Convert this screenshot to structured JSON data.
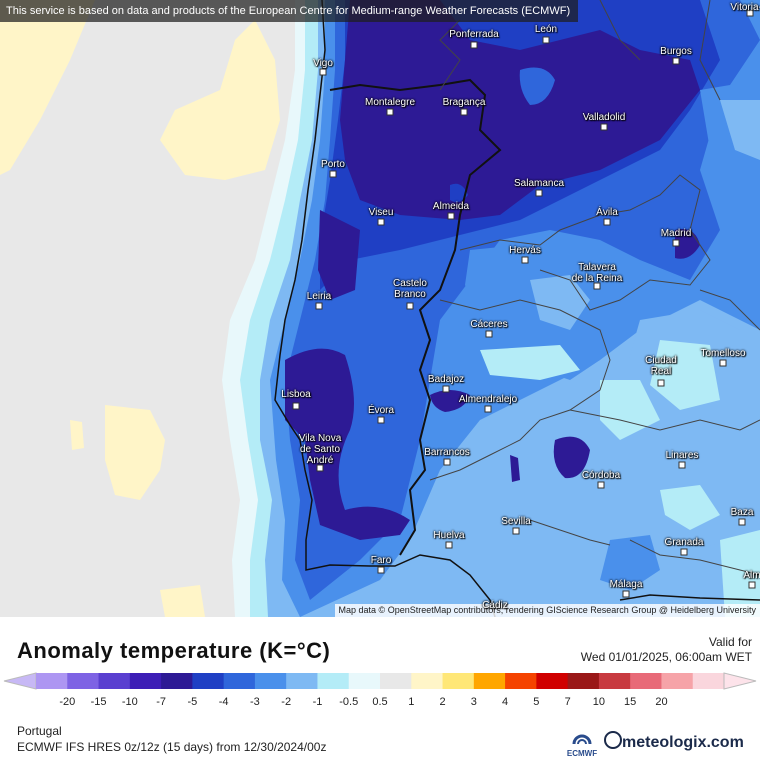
{
  "attribution_top": "This service is based on data and products of the European Centre for Medium-range Weather Forecasts (ECMWF)",
  "attribution_bottom": "Map data © OpenStreetMap contributors, rendering GIScience Research Group @ Heidelberg University",
  "cities": [
    {
      "name": "Ponferrada"
    },
    {
      "name": "León"
    },
    {
      "name": "Vigo"
    },
    {
      "name": "Montalegre"
    },
    {
      "name": "Bragança"
    },
    {
      "name": "Burgos"
    },
    {
      "name": "Valladolid"
    },
    {
      "name": "Porto"
    },
    {
      "name": "Salamanca"
    },
    {
      "name": "Viseu"
    },
    {
      "name": "Almeida"
    },
    {
      "name": "Ávila"
    },
    {
      "name": "Madrid"
    },
    {
      "name": "Hervás"
    },
    {
      "name": "Talavera\nde la Reina"
    },
    {
      "name": "Leiria"
    },
    {
      "name": "Castelo\nBranco"
    },
    {
      "name": "Cáceres"
    },
    {
      "name": "Tomelloso"
    },
    {
      "name": "Ciudad\nReal"
    },
    {
      "name": "Badajoz"
    },
    {
      "name": "Lisboa"
    },
    {
      "name": "Almendralejo"
    },
    {
      "name": "Évora"
    },
    {
      "name": "Vila Nova\nde Santo\nAndré"
    },
    {
      "name": "Barrancos"
    },
    {
      "name": "Linares"
    },
    {
      "name": "Córdoba"
    },
    {
      "name": "Baza"
    },
    {
      "name": "Sevilla"
    },
    {
      "name": "Huelva"
    },
    {
      "name": "Granada"
    },
    {
      "name": "Faro"
    },
    {
      "name": "Málaga"
    },
    {
      "name": "Vitoria-G"
    },
    {
      "name": "Alm"
    },
    {
      "name": "Cádiz"
    }
  ],
  "legend": {
    "title": "Anomaly temperature (K=°C)",
    "valid_label": "Valid for",
    "valid_date": "Wed 01/01/2025, 06:00am WET",
    "ticks": [
      "-20",
      "-15",
      "-10",
      "-7",
      "-5",
      "-4",
      "-3",
      "-2",
      "-1",
      "-0.5",
      "0.5",
      "1",
      "2",
      "3",
      "4",
      "5",
      "7",
      "10",
      "15",
      "20"
    ],
    "colors": [
      "#ad96f2",
      "#7e63e4",
      "#5a3fd0",
      "#3d1eb6",
      "#2d1a95",
      "#1f3fc4",
      "#2f66db",
      "#4a90eb",
      "#7eb9f3",
      "#b4ecf7",
      "#e8f8fb",
      "#e8e8e8",
      "#fff5c8",
      "#ffe777",
      "#ffa600",
      "#f54300",
      "#d00000",
      "#9a1818",
      "#c83a40",
      "#e86a78",
      "#f6a3a8",
      "#fad6dd"
    ],
    "under_color": "#c7b8f5",
    "over_color": "#fde3ea"
  },
  "region_label": "Portugal",
  "model_info": "ECMWF IFS HRES 0z/12z (15 days) from 12/30/2024/00z",
  "logos": {
    "ecmwf": "ECMWF",
    "meteologix": "meteologix.com"
  }
}
